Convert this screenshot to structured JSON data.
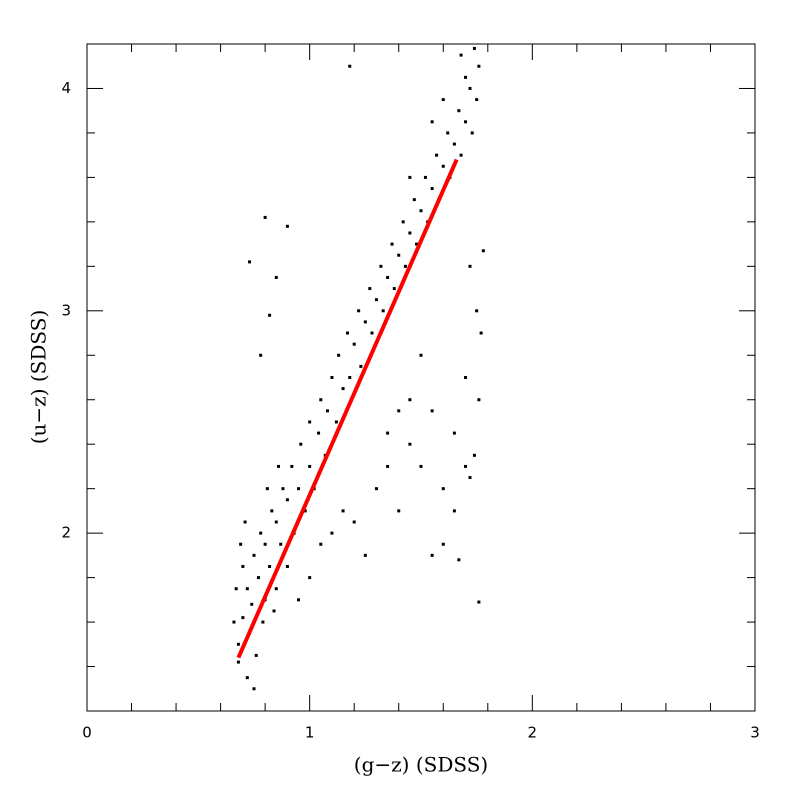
{
  "chart_data": {
    "type": "scatter",
    "xlabel": "(g−z) (SDSS)",
    "ylabel": "(u−z) (SDSS)",
    "xlim": [
      0,
      3
    ],
    "ylim": [
      1.2,
      4.2
    ],
    "xticks": [
      0,
      1,
      2,
      3
    ],
    "yticks": [
      2,
      3,
      4
    ],
    "xminorticks": [
      0.2,
      0.4,
      0.6,
      0.8,
      1.2,
      1.4,
      1.6,
      1.8,
      2.2,
      2.4,
      2.6,
      2.8
    ],
    "yminorticks": [
      1.4,
      1.6,
      1.8,
      2.2,
      2.4,
      2.6,
      2.8,
      3.2,
      3.4,
      3.6,
      3.8,
      4.2
    ],
    "color": "#000000",
    "x": [
      0.68,
      0.7,
      0.72,
      0.7,
      0.74,
      0.75,
      0.77,
      0.78,
      0.8,
      0.8,
      0.82,
      0.83,
      0.85,
      0.85,
      0.87,
      0.88,
      0.9,
      0.9,
      0.92,
      0.93,
      0.95,
      0.96,
      0.98,
      1.0,
      1.0,
      1.02,
      1.04,
      1.05,
      1.07,
      1.08,
      1.1,
      1.12,
      1.13,
      1.15,
      1.17,
      1.18,
      1.2,
      1.22,
      1.23,
      1.25,
      1.27,
      1.28,
      1.3,
      1.32,
      1.33,
      1.35,
      1.37,
      1.38,
      1.4,
      1.42,
      1.43,
      1.45,
      1.47,
      1.48,
      1.5,
      1.52,
      1.53,
      1.55,
      1.57,
      1.58,
      1.6,
      1.62,
      1.63,
      1.65,
      1.67,
      1.68,
      1.7,
      1.72,
      1.73,
      1.75,
      1.76,
      1.68,
      1.7,
      1.74,
      1.6,
      1.55,
      1.45,
      0.66,
      0.67,
      0.69,
      0.71,
      0.73,
      0.76,
      0.79,
      0.81,
      0.84,
      0.86,
      0.72,
      0.75,
      0.68,
      0.95,
      1.0,
      1.05,
      1.1,
      1.15,
      1.2,
      1.25,
      1.3,
      1.35,
      1.4,
      1.45,
      1.5,
      1.55,
      1.6,
      1.65,
      1.7,
      1.72,
      1.74,
      1.76,
      1.77,
      1.75,
      1.7,
      1.65,
      1.6,
      1.55,
      1.45,
      1.5,
      1.4,
      1.35,
      1.67,
      1.76,
      1.78,
      1.72,
      0.8,
      0.73,
      0.78,
      0.82,
      0.9,
      1.18,
      0.85
    ],
    "values": [
      1.5,
      1.62,
      1.75,
      1.85,
      1.68,
      1.9,
      1.8,
      2.0,
      1.7,
      1.95,
      1.85,
      2.1,
      1.75,
      2.05,
      1.95,
      2.2,
      1.85,
      2.15,
      2.3,
      2.0,
      2.2,
      2.4,
      2.1,
      2.3,
      2.5,
      2.2,
      2.45,
      2.6,
      2.35,
      2.55,
      2.7,
      2.5,
      2.8,
      2.65,
      2.9,
      2.7,
      2.85,
      3.0,
      2.75,
      2.95,
      3.1,
      2.9,
      3.05,
      3.2,
      3.0,
      3.15,
      3.3,
      3.1,
      3.25,
      3.4,
      3.2,
      3.35,
      3.5,
      3.3,
      3.45,
      3.6,
      3.4,
      3.55,
      3.7,
      3.5,
      3.65,
      3.8,
      3.6,
      3.75,
      3.9,
      3.7,
      3.85,
      4.0,
      3.8,
      3.95,
      4.1,
      4.15,
      4.05,
      4.18,
      3.95,
      3.85,
      3.6,
      1.6,
      1.75,
      1.95,
      2.05,
      1.55,
      1.45,
      1.6,
      2.2,
      1.65,
      2.3,
      1.35,
      1.3,
      1.42,
      1.7,
      1.8,
      1.95,
      2.0,
      2.1,
      2.05,
      1.9,
      2.2,
      2.3,
      2.1,
      2.4,
      2.3,
      2.55,
      2.2,
      2.45,
      2.3,
      2.25,
      2.35,
      2.6,
      2.9,
      3.0,
      2.7,
      2.1,
      1.95,
      1.9,
      2.6,
      2.8,
      2.55,
      2.45,
      1.88,
      1.69,
      3.27,
      3.2,
      3.42,
      3.22,
      2.8,
      2.98,
      3.38,
      4.1,
      3.15
    ],
    "fit": {
      "color": "#ff0000",
      "x": [
        0.68,
        1.66
      ],
      "values": [
        1.44,
        3.68
      ]
    }
  }
}
